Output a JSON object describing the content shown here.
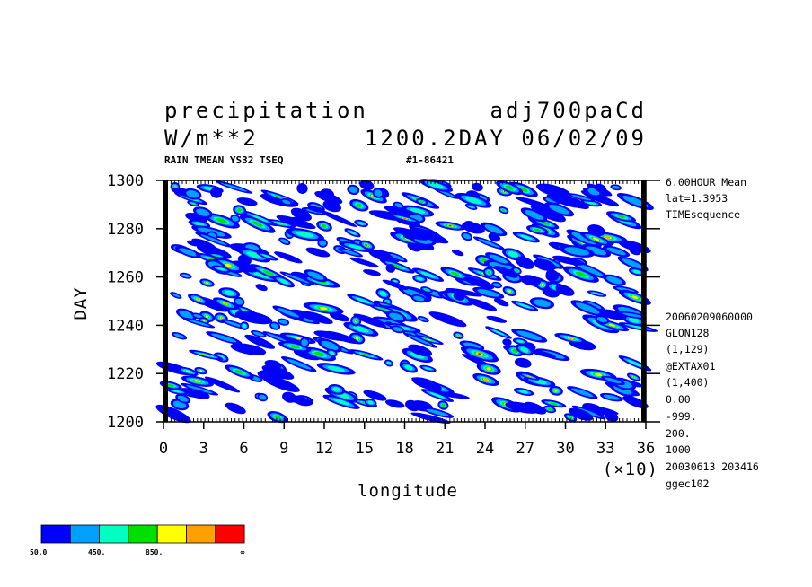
{
  "header": {
    "title_left": "precipitation",
    "title_right": "adj700paCd",
    "units": "W/m**2",
    "time_label": "1200.2DAY 06/02/09",
    "sub_left": "RAIN TMEAN YS32 TSEQ",
    "sub_right": "#1-86421"
  },
  "side_info": [
    "6.00HOUR Mean",
    "lat=1.3953",
    "TIMEsequence",
    "20060209060000",
    "GLON128",
    "(1,129)",
    "@EXTAX01",
    "(1,400)",
    "0.00",
    "-999.",
    "200.",
    "1000",
    "20030613 203416",
    "ggec102"
  ],
  "colorbar": {
    "colors": [
      "#0000ff",
      "#00a0ff",
      "#00ffc0",
      "#00e000",
      "#ffff00",
      "#ffa000",
      "#ff0000"
    ],
    "labels": [
      "50.0",
      "450.",
      "850.",
      "∞"
    ]
  },
  "chart_data": {
    "type": "heatmap",
    "title": "precipitation",
    "xlabel": "longitude",
    "ylabel": "DAY",
    "x_multiplier": "(×10)",
    "xlim": [
      0,
      36
    ],
    "ylim": [
      1200,
      1300
    ],
    "xticks": [
      "0",
      "3",
      "6",
      "9",
      "12",
      "15",
      "18",
      "21",
      "24",
      "27",
      "30",
      "33",
      "36"
    ],
    "yticks": [
      "1200",
      "1220",
      "1240",
      "1260",
      "1280",
      "1300"
    ],
    "levels": [
      50,
      450,
      850
    ],
    "pattern": "scattered westward-propagating precipitation patches (tilted streaks) over the whole longitude-time domain"
  }
}
